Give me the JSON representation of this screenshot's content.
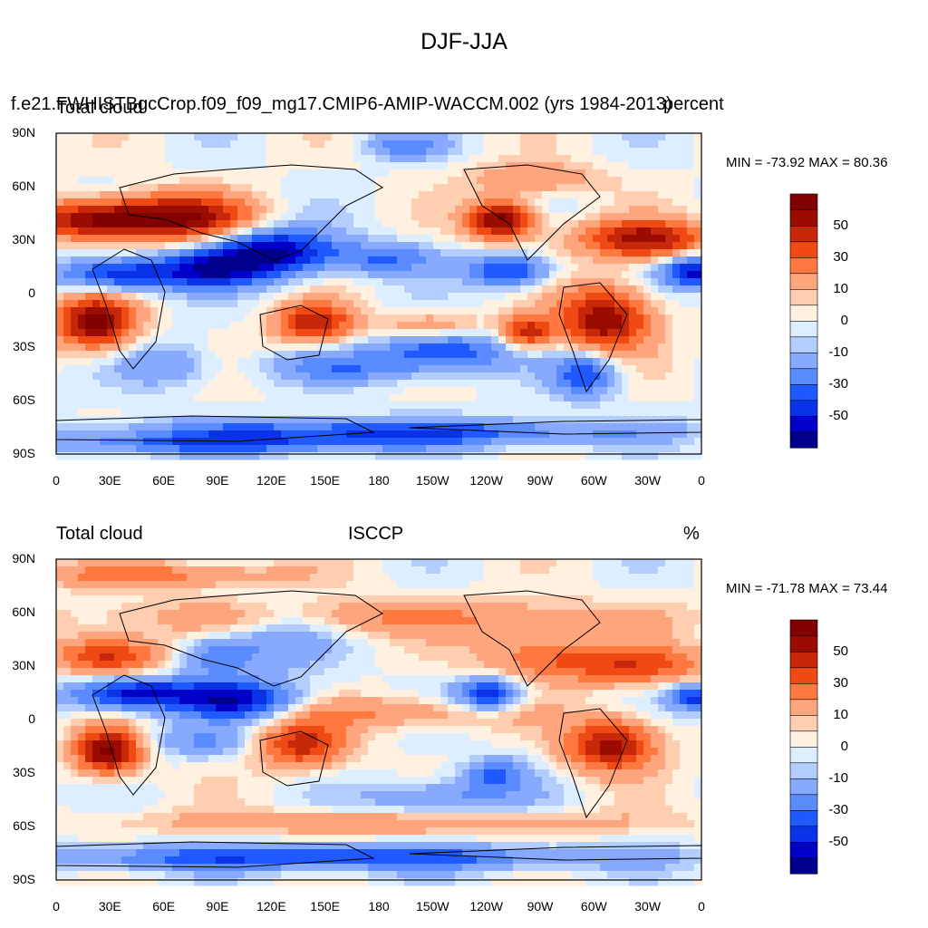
{
  "figure": {
    "title": "DJF-JJA"
  },
  "colorbar": {
    "levels": [
      -60,
      -50,
      -40,
      -30,
      -20,
      -10,
      -5,
      0,
      5,
      10,
      20,
      30,
      40,
      50,
      60
    ],
    "colors": [
      "#00008c",
      "#0000c8",
      "#0a32e6",
      "#1e5aff",
      "#5a8cff",
      "#87aaff",
      "#b4cdff",
      "#dceeff",
      "#fff0e0",
      "#ffcdb0",
      "#ffa57d",
      "#ff7840",
      "#f04a14",
      "#c8280a",
      "#9b0c00",
      "#820000"
    ],
    "labels": [
      "50",
      "30",
      "10",
      "0",
      "-10",
      "-30",
      "-50"
    ]
  },
  "panels": [
    {
      "id": "model",
      "left_title": "Total cloud",
      "center_title": "f.e21.FWHISTBgcCrop.f09_f09_mg17.CMIP6-AMIP-WACCM.002 (yrs 1984-2013)",
      "right_title": "percent",
      "min_max": "MIN = -73.92 MAX =  80.36",
      "y_ticks": [
        "90N",
        "60N",
        "30N",
        "0",
        "30S",
        "60S",
        "90S"
      ],
      "x_ticks": [
        "0",
        "30E",
        "60E",
        "90E",
        "120E",
        "150E",
        "180",
        "150W",
        "120W",
        "90W",
        "60W",
        "30W",
        "0"
      ]
    },
    {
      "id": "obs",
      "left_title": "Total cloud",
      "center_title": "ISCCP",
      "right_title": "%",
      "min_max": "MIN = -71.78 MAX =  73.44",
      "y_ticks": [
        "90N",
        "60N",
        "30N",
        "0",
        "30S",
        "60S",
        "90S"
      ],
      "x_ticks": [
        "0",
        "30E",
        "60E",
        "90E",
        "120E",
        "150E",
        "180",
        "150W",
        "120W",
        "90W",
        "60W",
        "30W",
        "0"
      ]
    }
  ]
}
